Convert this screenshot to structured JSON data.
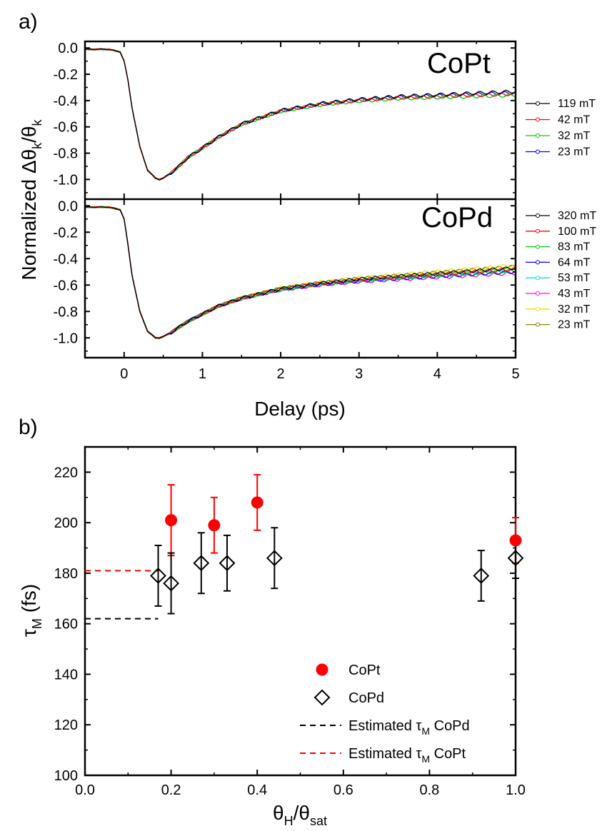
{
  "chart_data": [
    {
      "panel_label": "a)",
      "type": "line",
      "xlabel": "Delay (ps)",
      "ylabel": {
        "main": "Normalized Δθ",
        "sub1": "k",
        "mid": "/θ",
        "sub2": "k"
      },
      "xlim": [
        -0.5,
        5
      ],
      "x_ticks": [
        "0",
        "1",
        "2",
        "3",
        "4",
        "5"
      ],
      "y_ticks": [
        "0.0",
        "-0.2",
        "-0.4",
        "-0.6",
        "-0.8",
        "-1.0"
      ],
      "grid": false,
      "subpanels": [
        {
          "name": "CoPt",
          "ylim": [
            -1.15,
            0.05
          ],
          "curve": {
            "x": [
              -0.5,
              -0.2,
              -0.05,
              0.0,
              0.05,
              0.1,
              0.2,
              0.3,
              0.4,
              0.45,
              0.5,
              0.6,
              0.7,
              0.8,
              1.0,
              1.2,
              1.5,
              2.0,
              2.5,
              3.0,
              3.5,
              4.0,
              4.5,
              5.0
            ],
            "y": [
              -0.01,
              -0.01,
              -0.03,
              -0.1,
              -0.25,
              -0.45,
              -0.75,
              -0.93,
              -0.99,
              -1.0,
              -0.99,
              -0.95,
              -0.9,
              -0.84,
              -0.76,
              -0.68,
              -0.58,
              -0.48,
              -0.43,
              -0.4,
              -0.38,
              -0.37,
              -0.36,
              -0.35
            ]
          },
          "series": [
            {
              "name": "119 mT",
              "color": "#000000",
              "end": -0.33
            },
            {
              "name": "42 mT",
              "color": "#ff0000",
              "end": -0.35
            },
            {
              "name": "32 mT",
              "color": "#00cc00",
              "end": -0.36
            },
            {
              "name": "23 mT",
              "color": "#0000ff",
              "end": -0.34
            }
          ]
        },
        {
          "name": "CoPd",
          "ylim": [
            -1.15,
            0.05
          ],
          "curve": {
            "x": [
              -0.5,
              -0.2,
              -0.05,
              0.0,
              0.05,
              0.1,
              0.2,
              0.3,
              0.4,
              0.45,
              0.5,
              0.6,
              0.8,
              1.0,
              1.2,
              1.5,
              2.0,
              2.5,
              3.0,
              3.5,
              4.0,
              4.5,
              5.0
            ],
            "y": [
              -0.01,
              -0.01,
              -0.03,
              -0.1,
              -0.3,
              -0.52,
              -0.8,
              -0.95,
              -1.0,
              -1.0,
              -0.99,
              -0.96,
              -0.88,
              -0.82,
              -0.76,
              -0.7,
              -0.63,
              -0.59,
              -0.56,
              -0.54,
              -0.52,
              -0.5,
              -0.48
            ]
          },
          "series": [
            {
              "name": "320 mT",
              "color": "#000000",
              "end": -0.47
            },
            {
              "name": "100 mT",
              "color": "#ff0000",
              "end": -0.48
            },
            {
              "name": "83 mT",
              "color": "#00cc00",
              "end": -0.49
            },
            {
              "name": "64 mT",
              "color": "#0000ff",
              "end": -0.5
            },
            {
              "name": "53 mT",
              "color": "#00e5e5",
              "end": -0.49
            },
            {
              "name": "43 mT",
              "color": "#ff00ff",
              "end": -0.51
            },
            {
              "name": "32 mT",
              "color": "#e6e600",
              "end": -0.45
            },
            {
              "name": "23 mT",
              "color": "#808000",
              "end": -0.46
            }
          ]
        }
      ]
    },
    {
      "panel_label": "b)",
      "type": "scatter",
      "xlabel": {
        "main": "θ",
        "sub1": "H",
        "mid": "/θ",
        "sub2": "sat"
      },
      "ylabel": {
        "main": "τ",
        "sub": "M",
        "rest": " (fs)"
      },
      "xlim": [
        0.0,
        1.0
      ],
      "ylim": [
        100,
        230
      ],
      "x_ticks": [
        "0.0",
        "0.2",
        "0.4",
        "0.6",
        "0.8",
        "1.0"
      ],
      "y_ticks": [
        "100",
        "120",
        "140",
        "160",
        "180",
        "200",
        "220"
      ],
      "grid": false,
      "legend_position": "bottom-right",
      "series": [
        {
          "name": "CoPt",
          "marker": "filled-circle",
          "color": "#ff0000",
          "points": [
            {
              "x": 0.2,
              "y": 201,
              "err": 14
            },
            {
              "x": 0.3,
              "y": 199,
              "err": 11
            },
            {
              "x": 0.4,
              "y": 208,
              "err": 11
            },
            {
              "x": 1.0,
              "y": 193,
              "err": 9
            }
          ]
        },
        {
          "name": "CoPd",
          "marker": "open-diamond",
          "color": "#000000",
          "points": [
            {
              "x": 0.17,
              "y": 179,
              "err": 12
            },
            {
              "x": 0.2,
              "y": 176,
              "err": 12
            },
            {
              "x": 0.27,
              "y": 184,
              "err": 12
            },
            {
              "x": 0.33,
              "y": 184,
              "err": 11
            },
            {
              "x": 0.44,
              "y": 186,
              "err": 12
            },
            {
              "x": 0.92,
              "y": 179,
              "err": 10
            },
            {
              "x": 1.0,
              "y": 186,
              "err": 8
            }
          ]
        }
      ],
      "estimated_lines": [
        {
          "label": {
            "pre": "Estimated τ",
            "sub": "M",
            "post": " CoPd"
          },
          "y": 162,
          "x_end": 0.17,
          "color": "#000000"
        },
        {
          "label": {
            "pre": "Estimated τ",
            "sub": "M",
            "post": " CoPt"
          },
          "y": 181,
          "x_end": 0.17,
          "color": "#ff0000"
        }
      ]
    }
  ]
}
